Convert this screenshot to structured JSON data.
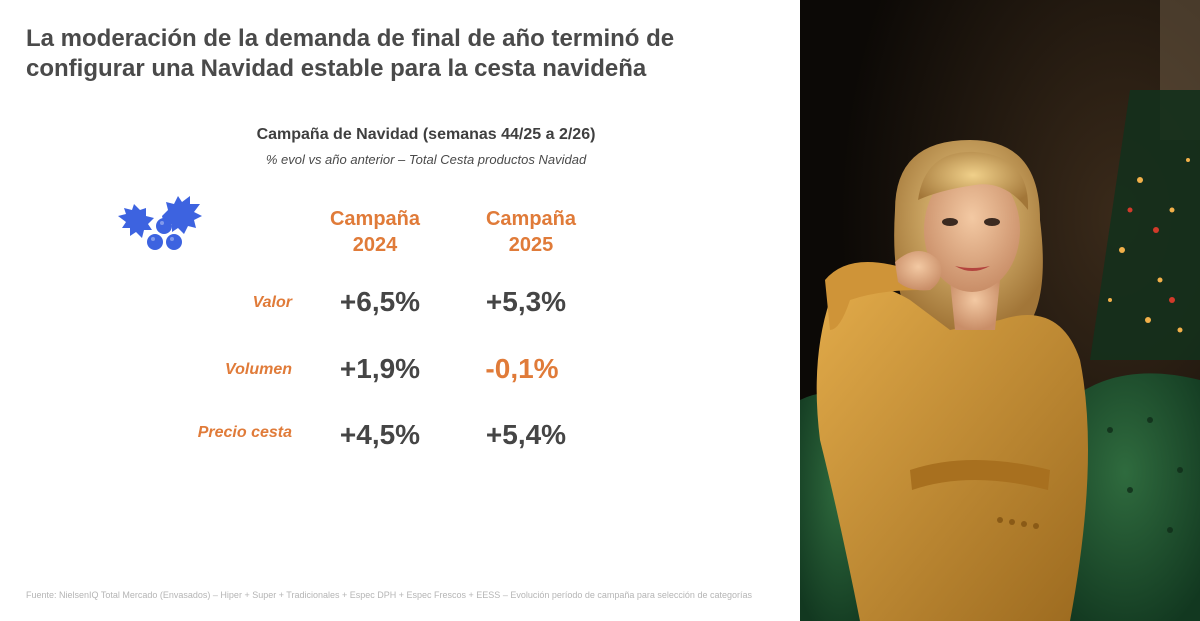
{
  "title": {
    "line1": "La moderación de la demanda de final de año terminó de",
    "line2": "configurar una Navidad estable para la cesta navideña"
  },
  "chart": {
    "heading": "Campaña de Navidad (semanas 44/25 a 2/26)",
    "subheading": "% evol vs año anterior – Total Cesta productos Navidad"
  },
  "table": {
    "columns": [
      {
        "line1": "Campaña",
        "line2": "2024"
      },
      {
        "line1": "Campaña",
        "line2": "2025"
      }
    ],
    "rows": [
      {
        "label": "Valor",
        "v2024": "+6,5%",
        "v2025": "+5,3%"
      },
      {
        "label": "Volumen",
        "v2024": "+1,9%",
        "v2025": "-0,1%"
      },
      {
        "label": "Precio cesta",
        "v2024": "+4,5%",
        "v2025": "+5,4%"
      }
    ]
  },
  "icons": {
    "holly": "holly-icon"
  },
  "colors": {
    "accent": "#e07b39",
    "holly": "#3d63e0",
    "text": "#454545"
  },
  "source": "Fuente: NielsenIQ Total Mercado (Envasados) – Hiper + Super + Tradicionales + Espec DPH + Espec Frescos + EESS – Evolución período de campaña para selección de categorías"
}
